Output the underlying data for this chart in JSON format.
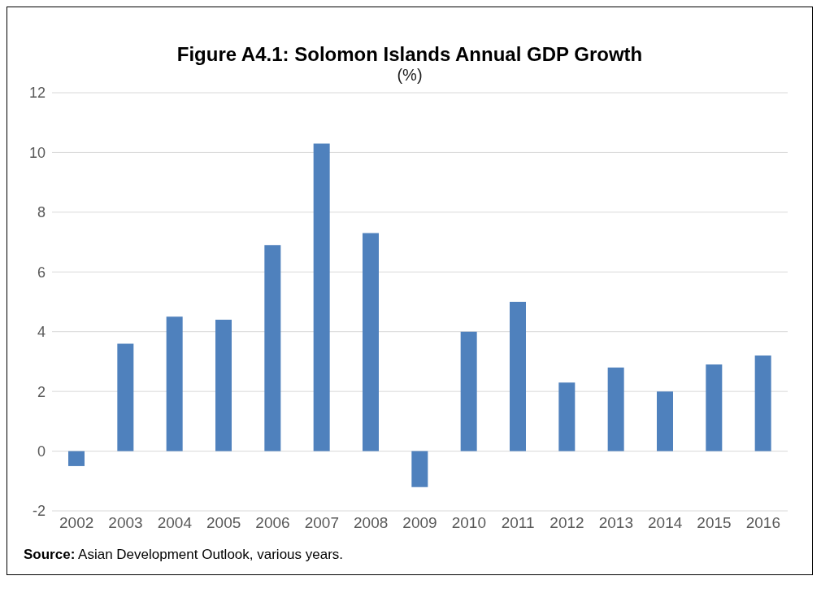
{
  "chart_data": {
    "type": "bar",
    "title": "Figure A4.1: Solomon Islands Annual GDP Growth",
    "subtitle": "(%)",
    "categories": [
      "2002",
      "2003",
      "2004",
      "2005",
      "2006",
      "2007",
      "2008",
      "2009",
      "2010",
      "2011",
      "2012",
      "2013",
      "2014",
      "2015",
      "2016"
    ],
    "values": [
      -0.5,
      3.6,
      4.5,
      4.4,
      6.9,
      10.3,
      7.3,
      -1.2,
      4.0,
      5.0,
      2.3,
      2.8,
      2.0,
      2.9,
      3.2
    ],
    "color": "#4f81bd",
    "ylim": [
      -2,
      12
    ],
    "yticks": [
      -2,
      0,
      2,
      4,
      6,
      8,
      10,
      12
    ],
    "grid": "y",
    "annotations": [
      "Source: Asian Development Outlook, various years."
    ]
  }
}
